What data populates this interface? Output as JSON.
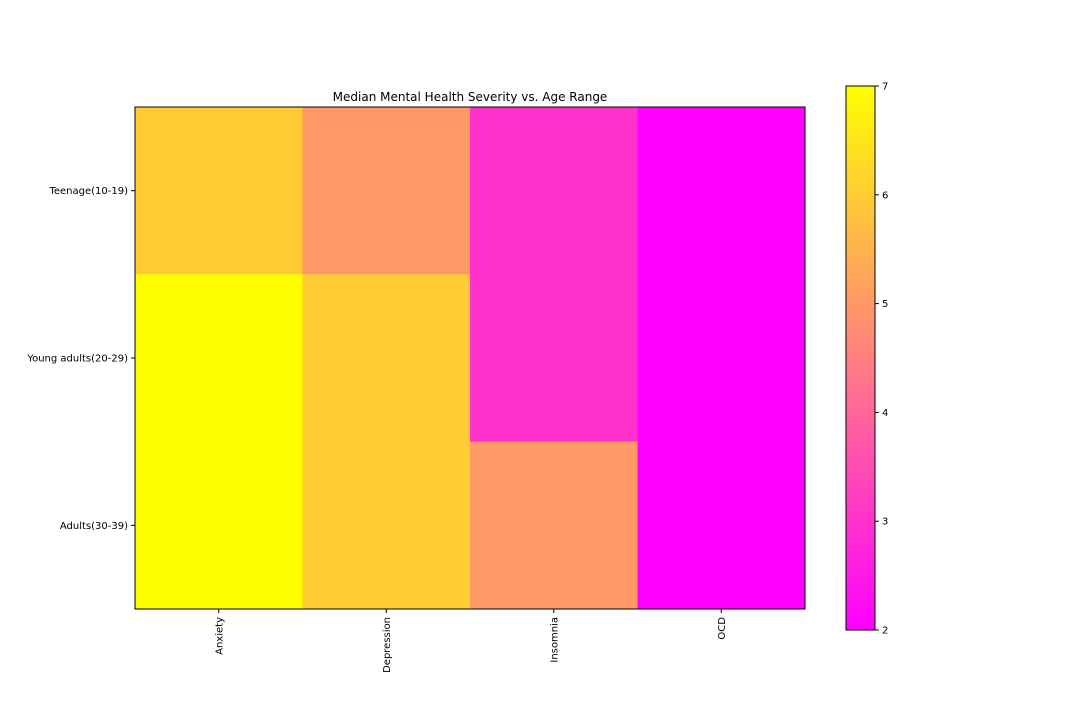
{
  "chart_data": {
    "type": "heatmap",
    "title": "Median Mental Health Severity vs. Age Range",
    "xlabel": "",
    "ylabel": "",
    "x_categories": [
      "Anxiety",
      "Depression",
      "Insomnia",
      "OCD"
    ],
    "y_categories": [
      "Teenage(10-19)",
      "Young adults(20-29)",
      "Adults(30-39)"
    ],
    "values": [
      [
        6,
        5,
        3,
        2
      ],
      [
        7,
        6,
        3,
        2
      ],
      [
        7,
        6,
        5,
        2
      ]
    ],
    "colormap": "spring",
    "color_range": [
      2,
      7
    ],
    "colorbar_ticks": [
      "2",
      "3",
      "4",
      "5",
      "6",
      "7"
    ],
    "colorbar_placement": "right",
    "grid": false
  }
}
